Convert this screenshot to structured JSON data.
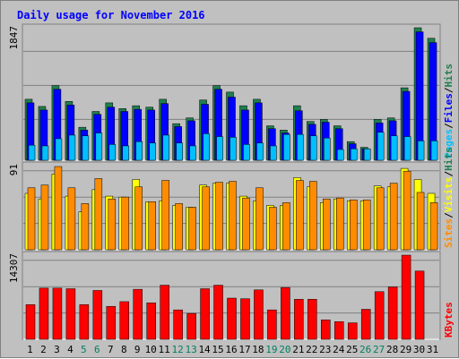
{
  "chart_data": {
    "type": "bar",
    "title": "Daily usage for November 2016",
    "categories": [
      "1",
      "2",
      "3",
      "4",
      "5",
      "6",
      "7",
      "8",
      "9",
      "10",
      "11",
      "12",
      "13",
      "14",
      "15",
      "16",
      "17",
      "18",
      "19",
      "20",
      "21",
      "22",
      "23",
      "24",
      "25",
      "26",
      "27",
      "28",
      "29",
      "30",
      "31"
    ],
    "weekend_days": [
      "5",
      "6",
      "12",
      "13",
      "19",
      "20",
      "26",
      "27"
    ],
    "panels": [
      {
        "id": "top",
        "ylabel_max": "1847",
        "ylim": [
          0,
          1847
        ],
        "legend": [
          "Pages",
          "/",
          "Files",
          "/",
          "Hits"
        ],
        "series": [
          {
            "name": "Hits",
            "color": "#1f7f4f",
            "values": [
              850,
              750,
              1040,
              820,
              460,
              680,
              800,
              720,
              760,
              740,
              850,
              510,
              590,
              840,
              1040,
              950,
              760,
              850,
              480,
              420,
              760,
              540,
              570,
              480,
              260,
              180,
              570,
              590,
              1010,
              1847,
              1700
            ]
          },
          {
            "name": "Files",
            "color": "#0000ff",
            "values": [
              800,
              700,
              990,
              770,
              420,
              640,
              740,
              680,
              710,
              700,
              790,
              470,
              550,
              780,
              990,
              880,
              700,
              800,
              440,
              380,
              690,
              500,
              530,
              440,
              230,
              160,
              520,
              550,
              960,
              1790,
              1640
            ]
          },
          {
            "name": "Pages",
            "color": "#00bfff",
            "values": [
              210,
              200,
              300,
              350,
              340,
              380,
              220,
              200,
              260,
              240,
              350,
              240,
              200,
              370,
              330,
              320,
              220,
              240,
              200,
              360,
              360,
              340,
              310,
              150,
              160,
              160,
              390,
              340,
              330,
              270,
              270
            ]
          }
        ]
      },
      {
        "id": "middle",
        "ylabel_max": "91",
        "ylim": [
          0,
          91
        ],
        "legend": [
          "Sites",
          "/",
          "Visits",
          "/",
          "Hits"
        ],
        "series": [
          {
            "name": "Visits",
            "color": "#ffff00",
            "values": [
              61,
              55,
              82,
              58,
              41,
              65,
              58,
              57,
              76,
              52,
              53,
              48,
              46,
              70,
              72,
              72,
              58,
              53,
              48,
              48,
              78,
              68,
              51,
              55,
              53,
              53,
              69,
              68,
              88,
              76,
              61
            ]
          },
          {
            "name": "Sites",
            "color": "#ff8c00",
            "values": [
              67,
              70,
              90,
              67,
              50,
              77,
              55,
              57,
              68,
              52,
              75,
              50,
              46,
              68,
              73,
              74,
              56,
              67,
              46,
              51,
              75,
              74,
              55,
              56,
              54,
              54,
              67,
              72,
              85,
              62,
              51
            ]
          }
        ]
      },
      {
        "id": "bottom",
        "ylabel_max": "14307",
        "ylim": [
          0,
          14307
        ],
        "legend": [
          "KBytes"
        ],
        "series": [
          {
            "name": "KBytes",
            "color": "#ff0000",
            "values": [
              5900,
              8700,
              8700,
              8600,
              5900,
              8300,
              5600,
              6400,
              8500,
              6200,
              9200,
              5000,
              4400,
              8600,
              9200,
              7000,
              6900,
              8400,
              5000,
              8800,
              6800,
              6800,
              3300,
              3000,
              2800,
              5100,
              8100,
              8900,
              14307,
              11600,
              0
            ]
          }
        ]
      }
    ]
  },
  "colors": {
    "background": "#c0c0c0",
    "title": "#0000ff",
    "weekday_label": "#000000",
    "weekend_label": "#00805f",
    "gridline": "#808080"
  }
}
